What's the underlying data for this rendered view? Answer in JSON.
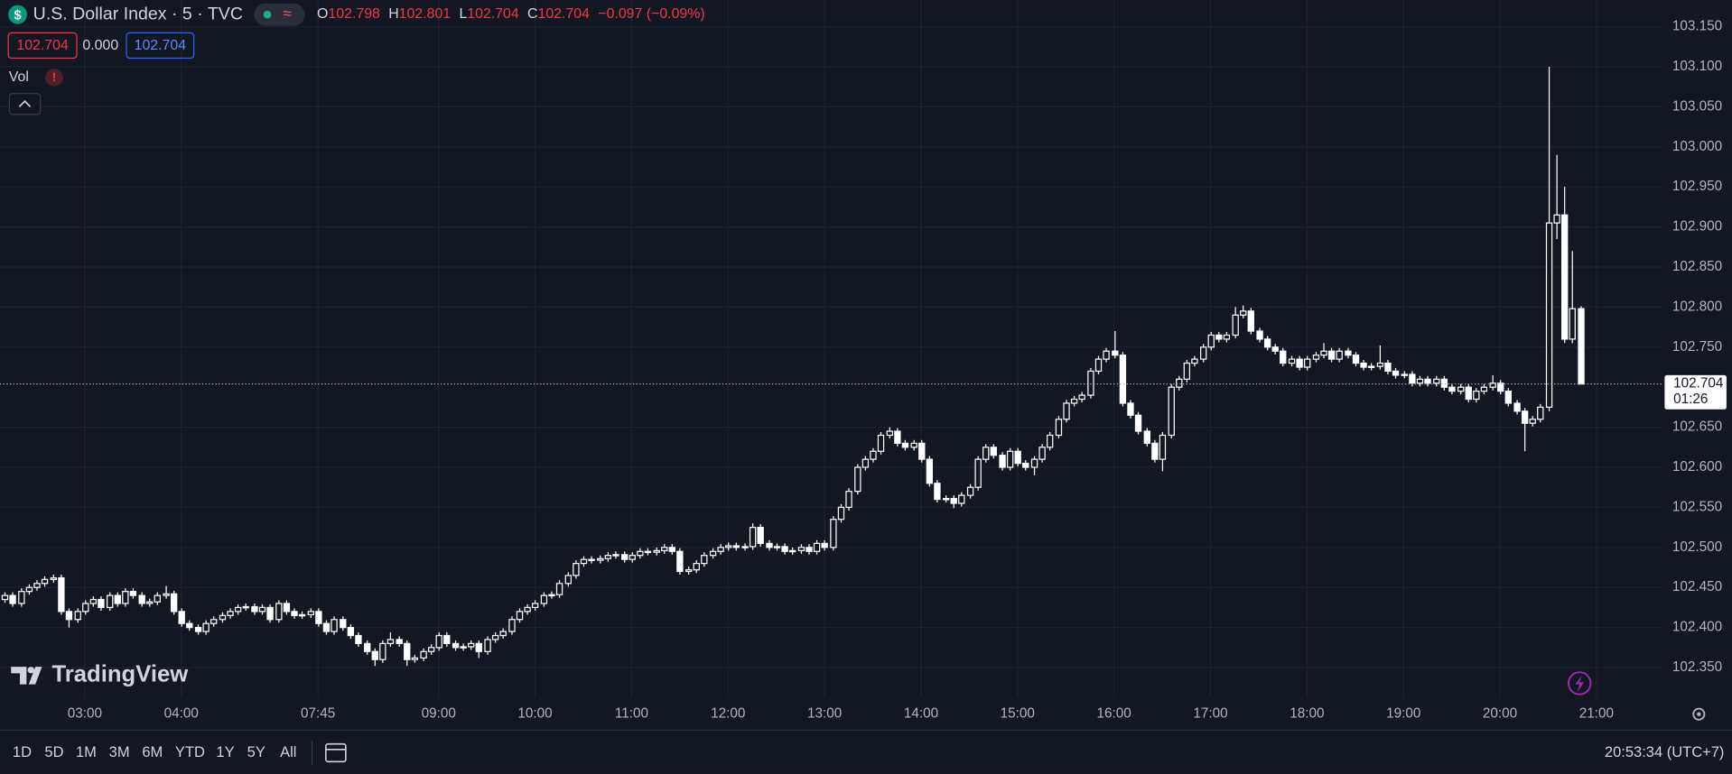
{
  "chart_data": {
    "type": "candlestick",
    "title": "U.S. Dollar Index · 5 · TVC",
    "ohlc_labels": [
      "O",
      "H",
      "L",
      "C"
    ],
    "ohlc_texts": [
      "102.798",
      "102.801",
      "102.704",
      "102.704"
    ],
    "change": "−0.097 (−0.09%)",
    "color": "#ffffff",
    "background": "#131722",
    "grid": true,
    "xlim": [
      -0.55,
      206.2
    ],
    "xticks": [
      {
        "value": 10,
        "label": "03:00"
      },
      {
        "value": 22,
        "label": "04:00"
      },
      {
        "value": 39,
        "label": "07:45"
      },
      {
        "value": 54,
        "label": "09:00"
      },
      {
        "value": 66,
        "label": "10:00"
      },
      {
        "value": 78,
        "label": "11:00"
      },
      {
        "value": 90,
        "label": "12:00"
      },
      {
        "value": 102,
        "label": "13:00"
      },
      {
        "value": 114,
        "label": "14:00"
      },
      {
        "value": 126,
        "label": "15:00"
      },
      {
        "value": 138,
        "label": "16:00"
      },
      {
        "value": 150,
        "label": "17:00"
      },
      {
        "value": 162,
        "label": "18:00"
      },
      {
        "value": 174,
        "label": "19:00"
      },
      {
        "value": 186,
        "label": "20:00"
      },
      {
        "value": 198,
        "label": "21:00"
      }
    ],
    "ylim": [
      102.3125,
      103.183
    ],
    "yticks": [
      {
        "value": 103.15,
        "label": "103.150"
      },
      {
        "value": 103.1,
        "label": "103.100"
      },
      {
        "value": 103.05,
        "label": "103.050"
      },
      {
        "value": 103,
        "label": "103.000"
      },
      {
        "value": 102.95,
        "label": "102.950"
      },
      {
        "value": 102.9,
        "label": "102.900"
      },
      {
        "value": 102.85,
        "label": "102.850"
      },
      {
        "value": 102.8,
        "label": "102.800"
      },
      {
        "value": 102.75,
        "label": "102.750"
      },
      {
        "value": 102.65,
        "label": "102.650"
      },
      {
        "value": 102.6,
        "label": "102.600"
      },
      {
        "value": 102.55,
        "label": "102.550"
      },
      {
        "value": 102.5,
        "label": "102.500"
      },
      {
        "value": 102.45,
        "label": "102.450"
      },
      {
        "value": 102.4,
        "label": "102.400"
      },
      {
        "value": 102.35,
        "label": "102.350"
      }
    ],
    "last_price": 102.704,
    "countdown": "01:26",
    "ohlc": [
      [
        102.435,
        102.444,
        102.431,
        102.44
      ],
      [
        102.44,
        102.444,
        102.426,
        102.43
      ],
      [
        102.43,
        102.449,
        102.426,
        102.445
      ],
      [
        102.445,
        102.454,
        102.441,
        102.45
      ],
      [
        102.45,
        102.459,
        102.446,
        102.455
      ],
      [
        102.455,
        102.464,
        102.451,
        102.46
      ],
      [
        102.46,
        102.466,
        102.456,
        102.462
      ],
      [
        102.462,
        102.466,
        102.416,
        102.42
      ],
      [
        102.42,
        102.424,
        102.4,
        102.41
      ],
      [
        102.41,
        102.424,
        102.406,
        102.42
      ],
      [
        102.42,
        102.434,
        102.416,
        102.43
      ],
      [
        102.43,
        102.439,
        102.426,
        102.435
      ],
      [
        102.435,
        102.439,
        102.421,
        102.425
      ],
      [
        102.425,
        102.444,
        102.421,
        102.44
      ],
      [
        102.44,
        102.444,
        102.426,
        102.43
      ],
      [
        102.43,
        102.449,
        102.426,
        102.445
      ],
      [
        102.445,
        102.449,
        102.436,
        102.44
      ],
      [
        102.44,
        102.444,
        102.426,
        102.43
      ],
      [
        102.43,
        102.436,
        102.426,
        102.432
      ],
      [
        102.432,
        102.444,
        102.428,
        102.44
      ],
      [
        102.44,
        102.452,
        102.436,
        102.442
      ],
      [
        102.442,
        102.446,
        102.416,
        102.42
      ],
      [
        102.42,
        102.424,
        102.401,
        102.405
      ],
      [
        102.405,
        102.409,
        102.396,
        102.4
      ],
      [
        102.4,
        102.404,
        102.391,
        102.395
      ],
      [
        102.395,
        102.409,
        102.391,
        102.405
      ],
      [
        102.405,
        102.414,
        102.401,
        102.41
      ],
      [
        102.41,
        102.419,
        102.406,
        102.415
      ],
      [
        102.415,
        102.424,
        102.411,
        102.42
      ],
      [
        102.42,
        102.429,
        102.416,
        102.425
      ],
      [
        102.425,
        102.43,
        102.421,
        102.426
      ],
      [
        102.426,
        102.43,
        102.416,
        102.42
      ],
      [
        102.42,
        102.429,
        102.416,
        102.425
      ],
      [
        102.425,
        102.429,
        102.406,
        102.41
      ],
      [
        102.41,
        102.434,
        102.406,
        102.43
      ],
      [
        102.43,
        102.434,
        102.416,
        102.42
      ],
      [
        102.42,
        102.424,
        102.411,
        102.415
      ],
      [
        102.415,
        102.42,
        102.411,
        102.416
      ],
      [
        102.416,
        102.424,
        102.412,
        102.42
      ],
      [
        102.42,
        102.424,
        102.401,
        102.405
      ],
      [
        102.405,
        102.409,
        102.391,
        102.395
      ],
      [
        102.395,
        102.414,
        102.391,
        102.41
      ],
      [
        102.41,
        102.414,
        102.396,
        102.4
      ],
      [
        102.4,
        102.404,
        102.386,
        102.39
      ],
      [
        102.39,
        102.394,
        102.376,
        102.38
      ],
      [
        102.38,
        102.384,
        102.366,
        102.37
      ],
      [
        102.37,
        102.374,
        102.352,
        102.36
      ],
      [
        102.36,
        102.384,
        102.356,
        102.38
      ],
      [
        102.38,
        102.394,
        102.376,
        102.385
      ],
      [
        102.385,
        102.389,
        102.376,
        102.38
      ],
      [
        102.38,
        102.384,
        102.352,
        102.36
      ],
      [
        102.36,
        102.366,
        102.356,
        102.362
      ],
      [
        102.362,
        102.374,
        102.358,
        102.37
      ],
      [
        102.37,
        102.379,
        102.366,
        102.375
      ],
      [
        102.375,
        102.394,
        102.371,
        102.39
      ],
      [
        102.39,
        102.394,
        102.376,
        102.38
      ],
      [
        102.38,
        102.384,
        102.371,
        102.375
      ],
      [
        102.375,
        102.38,
        102.371,
        102.376
      ],
      [
        102.376,
        102.384,
        102.372,
        102.38
      ],
      [
        102.38,
        102.384,
        102.362,
        102.37
      ],
      [
        102.37,
        102.389,
        102.366,
        102.385
      ],
      [
        102.385,
        102.394,
        102.381,
        102.39
      ],
      [
        102.39,
        102.399,
        102.386,
        102.395
      ],
      [
        102.395,
        102.414,
        102.391,
        102.41
      ],
      [
        102.41,
        102.424,
        102.406,
        102.42
      ],
      [
        102.42,
        102.429,
        102.416,
        102.425
      ],
      [
        102.425,
        102.434,
        102.421,
        102.43
      ],
      [
        102.43,
        102.444,
        102.426,
        102.44
      ],
      [
        102.44,
        102.445,
        102.436,
        102.441
      ],
      [
        102.441,
        102.459,
        102.437,
        102.455
      ],
      [
        102.455,
        102.469,
        102.451,
        102.465
      ],
      [
        102.465,
        102.484,
        102.461,
        102.48
      ],
      [
        102.48,
        102.489,
        102.476,
        102.485
      ],
      [
        102.485,
        102.489,
        102.48,
        102.484
      ],
      [
        102.484,
        102.49,
        102.48,
        102.486
      ],
      [
        102.486,
        102.494,
        102.482,
        102.49
      ],
      [
        102.49,
        102.495,
        102.486,
        102.491
      ],
      [
        102.491,
        102.495,
        102.481,
        102.485
      ],
      [
        102.485,
        102.494,
        102.481,
        102.49
      ],
      [
        102.49,
        102.499,
        102.486,
        102.495
      ],
      [
        102.495,
        102.499,
        102.49,
        102.494
      ],
      [
        102.494,
        102.5,
        102.49,
        102.496
      ],
      [
        102.496,
        102.504,
        102.492,
        102.5
      ],
      [
        102.5,
        102.504,
        102.491,
        102.495
      ],
      [
        102.495,
        102.499,
        102.466,
        102.47
      ],
      [
        102.47,
        102.476,
        102.466,
        102.472
      ],
      [
        102.472,
        102.484,
        102.468,
        102.48
      ],
      [
        102.48,
        102.494,
        102.476,
        102.49
      ],
      [
        102.49,
        102.499,
        102.486,
        102.495
      ],
      [
        102.495,
        102.504,
        102.491,
        102.5
      ],
      [
        102.5,
        102.506,
        102.496,
        102.502
      ],
      [
        102.502,
        102.506,
        102.496,
        102.5
      ],
      [
        102.5,
        102.505,
        102.496,
        102.501
      ],
      [
        102.501,
        102.53,
        102.497,
        102.525
      ],
      [
        102.525,
        102.529,
        102.501,
        102.505
      ],
      [
        102.505,
        102.509,
        102.496,
        102.5
      ],
      [
        102.5,
        102.505,
        102.496,
        102.501
      ],
      [
        102.501,
        102.505,
        102.491,
        102.495
      ],
      [
        102.495,
        102.5,
        102.491,
        102.496
      ],
      [
        102.496,
        102.504,
        102.492,
        102.5
      ],
      [
        102.5,
        102.504,
        102.491,
        102.495
      ],
      [
        102.495,
        102.509,
        102.491,
        102.505
      ],
      [
        102.505,
        102.509,
        102.496,
        102.5
      ],
      [
        102.5,
        102.539,
        102.496,
        102.535
      ],
      [
        102.535,
        102.554,
        102.531,
        102.55
      ],
      [
        102.55,
        102.574,
        102.546,
        102.57
      ],
      [
        102.57,
        102.604,
        102.566,
        102.6
      ],
      [
        102.6,
        102.614,
        102.596,
        102.61
      ],
      [
        102.61,
        102.624,
        102.606,
        102.62
      ],
      [
        102.62,
        102.644,
        102.616,
        102.64
      ],
      [
        102.64,
        102.65,
        102.636,
        102.645
      ],
      [
        102.645,
        102.649,
        102.626,
        102.63
      ],
      [
        102.63,
        102.634,
        102.621,
        102.625
      ],
      [
        102.625,
        102.634,
        102.621,
        102.63
      ],
      [
        102.63,
        102.634,
        102.606,
        102.61
      ],
      [
        102.61,
        102.614,
        102.576,
        102.58
      ],
      [
        102.58,
        102.584,
        102.556,
        102.56
      ],
      [
        102.56,
        102.565,
        102.556,
        102.561
      ],
      [
        102.561,
        102.565,
        102.549,
        102.555
      ],
      [
        102.555,
        102.569,
        102.551,
        102.565
      ],
      [
        102.565,
        102.579,
        102.561,
        102.575
      ],
      [
        102.575,
        102.614,
        102.571,
        102.61
      ],
      [
        102.61,
        102.629,
        102.606,
        102.625
      ],
      [
        102.625,
        102.629,
        102.611,
        102.615
      ],
      [
        102.615,
        102.619,
        102.596,
        102.6
      ],
      [
        102.6,
        102.624,
        102.596,
        102.62
      ],
      [
        102.62,
        102.624,
        102.601,
        102.605
      ],
      [
        102.605,
        102.609,
        102.596,
        102.6
      ],
      [
        102.6,
        102.614,
        102.59,
        102.61
      ],
      [
        102.61,
        102.629,
        102.606,
        102.625
      ],
      [
        102.625,
        102.644,
        102.621,
        102.64
      ],
      [
        102.64,
        102.664,
        102.636,
        102.66
      ],
      [
        102.66,
        102.684,
        102.656,
        102.68
      ],
      [
        102.68,
        102.689,
        102.676,
        102.685
      ],
      [
        102.685,
        102.694,
        102.681,
        102.69
      ],
      [
        102.69,
        102.724,
        102.686,
        102.72
      ],
      [
        102.72,
        102.739,
        102.716,
        102.735
      ],
      [
        102.735,
        102.749,
        102.731,
        102.745
      ],
      [
        102.745,
        102.77,
        102.736,
        102.74
      ],
      [
        102.74,
        102.744,
        102.676,
        102.68
      ],
      [
        102.68,
        102.684,
        102.661,
        102.665
      ],
      [
        102.665,
        102.669,
        102.641,
        102.645
      ],
      [
        102.645,
        102.649,
        102.626,
        102.63
      ],
      [
        102.63,
        102.634,
        102.606,
        102.61
      ],
      [
        102.61,
        102.644,
        102.595,
        102.64
      ],
      [
        102.64,
        102.704,
        102.636,
        102.7
      ],
      [
        102.7,
        102.714,
        102.696,
        102.71
      ],
      [
        102.71,
        102.734,
        102.706,
        102.73
      ],
      [
        102.73,
        102.739,
        102.726,
        102.735
      ],
      [
        102.735,
        102.754,
        102.731,
        102.75
      ],
      [
        102.75,
        102.769,
        102.746,
        102.765
      ],
      [
        102.765,
        102.769,
        102.756,
        102.76
      ],
      [
        102.76,
        102.769,
        102.756,
        102.765
      ],
      [
        102.765,
        102.8,
        102.761,
        102.79
      ],
      [
        102.79,
        102.802,
        102.786,
        102.795
      ],
      [
        102.795,
        102.799,
        102.766,
        102.77
      ],
      [
        102.77,
        102.774,
        102.756,
        102.76
      ],
      [
        102.76,
        102.764,
        102.746,
        102.75
      ],
      [
        102.75,
        102.754,
        102.741,
        102.745
      ],
      [
        102.745,
        102.749,
        102.726,
        102.73
      ],
      [
        102.73,
        102.739,
        102.726,
        102.735
      ],
      [
        102.735,
        102.739,
        102.721,
        102.725
      ],
      [
        102.725,
        102.739,
        102.721,
        102.735
      ],
      [
        102.735,
        102.744,
        102.731,
        102.74
      ],
      [
        102.74,
        102.755,
        102.736,
        102.745
      ],
      [
        102.745,
        102.749,
        102.731,
        102.735
      ],
      [
        102.735,
        102.749,
        102.731,
        102.745
      ],
      [
        102.745,
        102.749,
        102.736,
        102.74
      ],
      [
        102.74,
        102.744,
        102.726,
        102.73
      ],
      [
        102.73,
        102.734,
        102.721,
        102.725
      ],
      [
        102.725,
        102.73,
        102.721,
        102.726
      ],
      [
        102.726,
        102.752,
        102.722,
        102.73
      ],
      [
        102.73,
        102.734,
        102.716,
        102.72
      ],
      [
        102.72,
        102.724,
        102.711,
        102.715
      ],
      [
        102.715,
        102.72,
        102.711,
        102.716
      ],
      [
        102.716,
        102.72,
        102.701,
        102.705
      ],
      [
        102.705,
        102.714,
        102.701,
        102.71
      ],
      [
        102.71,
        102.714,
        102.701,
        102.705
      ],
      [
        102.705,
        102.714,
        102.701,
        102.71
      ],
      [
        102.71,
        102.714,
        102.696,
        102.7
      ],
      [
        102.7,
        102.704,
        102.691,
        102.695
      ],
      [
        102.695,
        102.704,
        102.691,
        102.7
      ],
      [
        102.7,
        102.704,
        102.681,
        102.685
      ],
      [
        102.685,
        102.699,
        102.681,
        102.695
      ],
      [
        102.695,
        102.704,
        102.691,
        102.7
      ],
      [
        102.7,
        102.715,
        102.696,
        102.705
      ],
      [
        102.705,
        102.709,
        102.691,
        102.695
      ],
      [
        102.695,
        102.699,
        102.676,
        102.68
      ],
      [
        102.68,
        102.684,
        102.666,
        102.67
      ],
      [
        102.67,
        102.674,
        102.62,
        102.655
      ],
      [
        102.655,
        102.664,
        102.651,
        102.66
      ],
      [
        102.66,
        102.679,
        102.656,
        102.675
      ],
      [
        102.675,
        103.1,
        102.67,
        102.905
      ],
      [
        102.905,
        102.99,
        102.885,
        102.915
      ],
      [
        102.915,
        102.95,
        102.755,
        102.76
      ],
      [
        102.76,
        102.87,
        102.755,
        102.798
      ],
      [
        102.798,
        102.801,
        102.704,
        102.704
      ]
    ]
  },
  "header": {
    "icon": "$",
    "status_icon": "≈",
    "price_boxes": [
      "102.704",
      "0.000",
      "102.704"
    ],
    "volume_label": "Vol",
    "volume_warning": "!",
    "watermark": "TradingView"
  },
  "toolbar": {
    "ranges": [
      "1D",
      "5D",
      "1M",
      "3M",
      "6M",
      "YTD",
      "1Y",
      "5Y",
      "All"
    ],
    "clock": "20:53:34 (UTC+7)"
  }
}
